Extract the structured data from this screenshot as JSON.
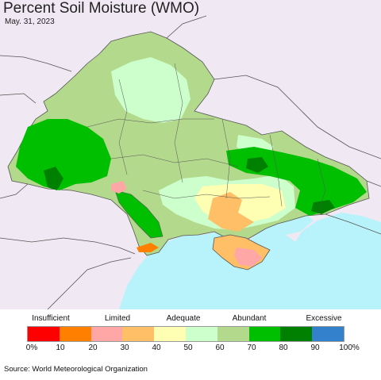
{
  "title": "Percent Soil Moisture (WMO)",
  "date": "May. 31, 2023",
  "legend": {
    "categories": [
      {
        "label": "Insufficient"
      },
      {
        "label": "Limited"
      },
      {
        "label": "Adequate"
      },
      {
        "label": "Abundant"
      },
      {
        "label": "Excessive"
      }
    ],
    "colors": [
      "#ff0000",
      "#ff8000",
      "#ffa6a6",
      "#ffbf66",
      "#ffffb3",
      "#ccffcc",
      "#b3d98c",
      "#00bf00",
      "#008000",
      "#3380cc"
    ],
    "ticks": [
      "0%",
      "10",
      "20",
      "30",
      "40",
      "50",
      "60",
      "70",
      "80",
      "90",
      "100%"
    ]
  },
  "source": "Source: World Meteorological Organization",
  "palette": {
    "background_land": "#f0e8f2",
    "sea": "#b8f3fb",
    "border": "#555555"
  }
}
